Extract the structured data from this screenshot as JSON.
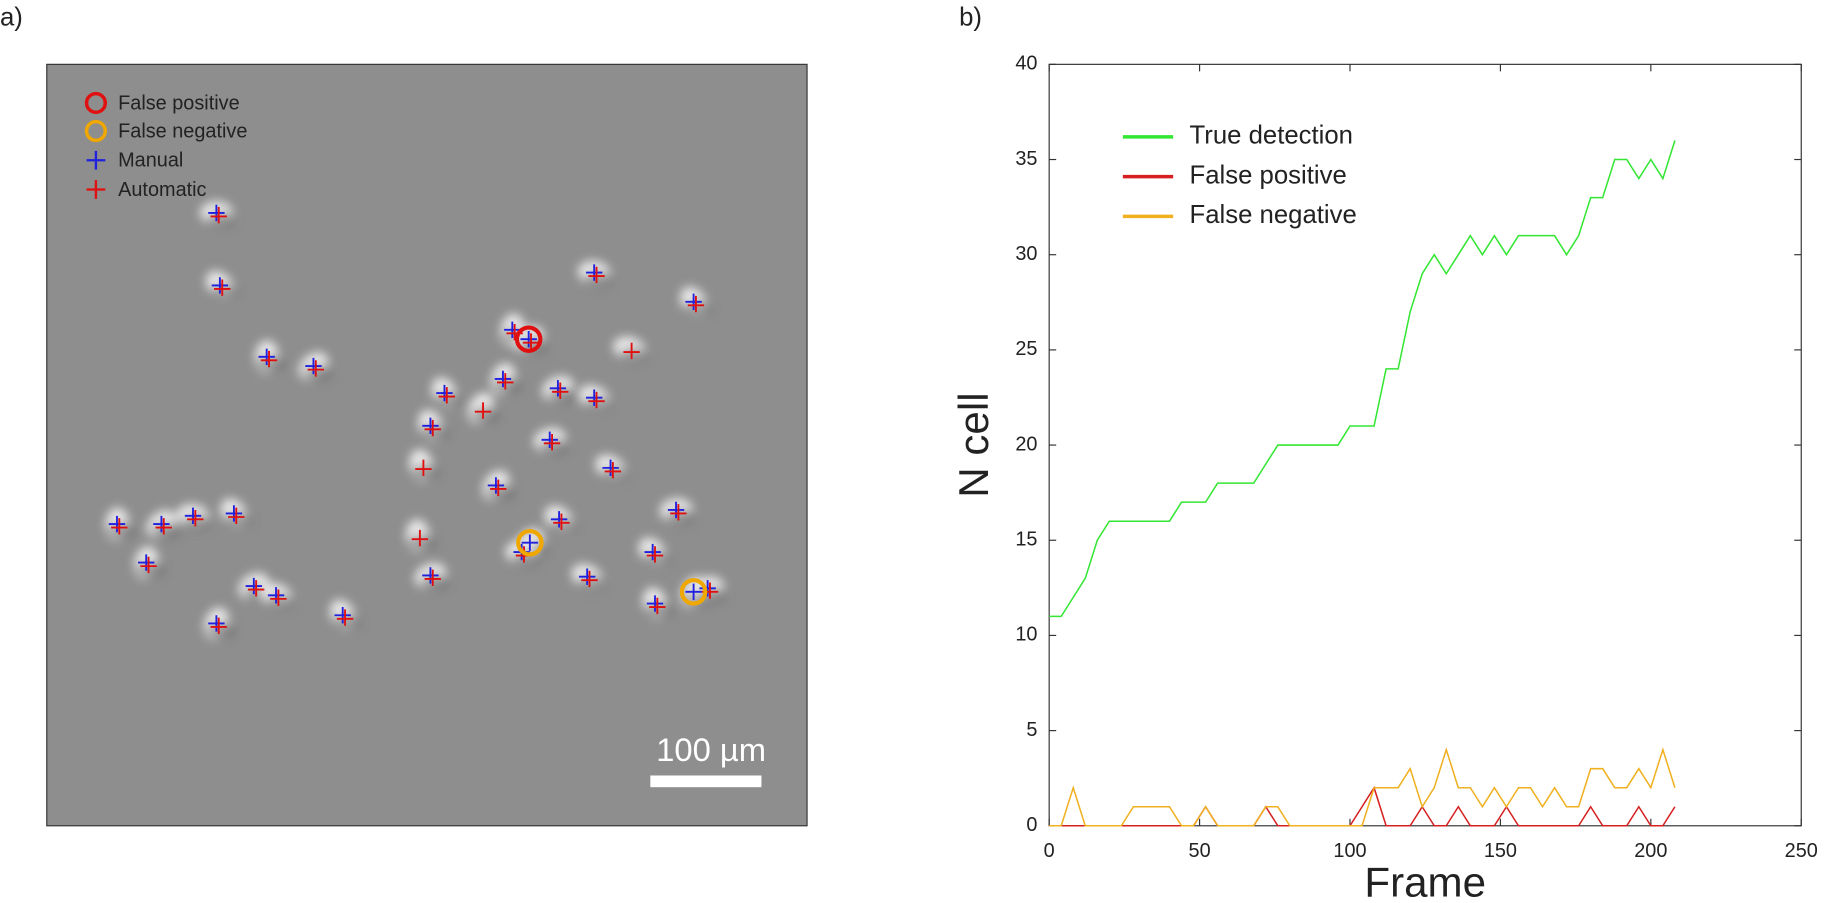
{
  "panel_a": {
    "label": "a)",
    "legend": [
      "False positive",
      "False negative",
      "Manual",
      "Automatic"
    ],
    "scale_bar": "100 µm"
  },
  "chart_data": {
    "type": "line",
    "panel_label": "b)",
    "xlabel": "Frame",
    "ylabel": "N cell",
    "x": [
      0,
      4,
      8,
      12,
      16,
      20,
      24,
      28,
      32,
      36,
      40,
      44,
      48,
      52,
      56,
      60,
      64,
      68,
      72,
      76,
      80,
      84,
      88,
      92,
      96,
      100,
      104,
      108,
      112,
      116,
      120,
      124,
      128,
      132,
      136,
      140,
      144,
      148,
      152,
      156,
      160,
      164,
      168,
      172,
      176,
      180,
      184,
      188,
      192,
      196,
      200,
      204,
      208
    ],
    "series": [
      {
        "name": "True detection",
        "color": "#33e633",
        "values": [
          11,
          11,
          12,
          13,
          15,
          16,
          16,
          16,
          16,
          16,
          16,
          17,
          17,
          17,
          18,
          18,
          18,
          18,
          19,
          20,
          20,
          20,
          20,
          20,
          20,
          21,
          21,
          21,
          24,
          24,
          27,
          29,
          30,
          29,
          30,
          31,
          30,
          31,
          30,
          31,
          31,
          31,
          31,
          30,
          31,
          33,
          33,
          35,
          35,
          34,
          35,
          34,
          36
        ]
      },
      {
        "name": "False positive",
        "color": "#d62020",
        "values": [
          0,
          0,
          0,
          0,
          0,
          0,
          0,
          0,
          0,
          0,
          0,
          0,
          0,
          1,
          0,
          0,
          0,
          0,
          1,
          0,
          0,
          0,
          0,
          0,
          0,
          0,
          1,
          2,
          0,
          0,
          0,
          1,
          0,
          0,
          1,
          0,
          0,
          0,
          1,
          0,
          0,
          0,
          0,
          0,
          0,
          1,
          0,
          0,
          0,
          1,
          0,
          0,
          1
        ]
      },
      {
        "name": "False negative",
        "color": "#f0b020",
        "values": [
          0,
          0,
          2,
          0,
          0,
          0,
          0,
          1,
          1,
          1,
          1,
          0,
          0,
          1,
          0,
          0,
          0,
          0,
          1,
          1,
          0,
          0,
          0,
          0,
          0,
          0,
          0,
          2,
          2,
          2,
          3,
          1,
          2,
          4,
          2,
          2,
          1,
          2,
          1,
          2,
          2,
          1,
          2,
          1,
          1,
          3,
          3,
          2,
          2,
          3,
          2,
          4,
          2
        ]
      }
    ],
    "xlim": [
      0,
      250
    ],
    "xticks": [
      0,
      50,
      100,
      150,
      200,
      250
    ],
    "ylim": [
      0,
      40
    ],
    "yticks": [
      0,
      5,
      10,
      15,
      20,
      25,
      30,
      35,
      40
    ],
    "legend": "upper left"
  }
}
